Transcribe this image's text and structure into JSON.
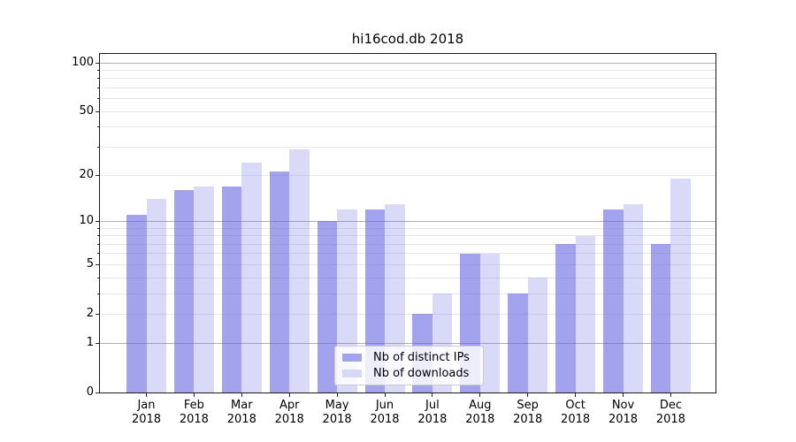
{
  "figure": {
    "title": "hi16cod.db 2018"
  },
  "chart_data": {
    "type": "bar",
    "title": "hi16cod.db 2018",
    "categories": [
      "Jan 2018",
      "Feb 2018",
      "Mar 2018",
      "Apr 2018",
      "May 2018",
      "Jun 2018",
      "Jul 2018",
      "Aug 2018",
      "Sep 2018",
      "Oct 2018",
      "Nov 2018",
      "Dec 2018"
    ],
    "months": [
      "Jan",
      "Feb",
      "Mar",
      "Apr",
      "May",
      "Jun",
      "Jul",
      "Aug",
      "Sep",
      "Oct",
      "Nov",
      "Dec"
    ],
    "year": "2018",
    "series": [
      {
        "name": "Nb of distinct IPs",
        "values": [
          11,
          16,
          17,
          21,
          10,
          12,
          2,
          6,
          3,
          7,
          12,
          7
        ],
        "color": "#6060e0",
        "alpha": 0.58,
        "legend_color": "#a2a2ed"
      },
      {
        "name": "Nb of downloads",
        "values": [
          14,
          17,
          24,
          29,
          12,
          13,
          3,
          6,
          4,
          8,
          13,
          19
        ],
        "color": "#6060e0",
        "alpha": 0.24,
        "legend_color": "#d8d8f8"
      }
    ],
    "xlabel": "",
    "ylabel": "",
    "y_axis": {
      "scale": "log(value+1)",
      "range": [
        0,
        115
      ],
      "tick_values": [
        0,
        1,
        2,
        5,
        10,
        20,
        50,
        100
      ],
      "tick_labels": [
        "0",
        "1",
        "2",
        "5",
        "10",
        "20",
        "50",
        "100"
      ],
      "major_gridlines": [
        1,
        10,
        100
      ],
      "minor_gridlines": [
        2,
        3,
        4,
        5,
        6,
        7,
        8,
        9,
        20,
        30,
        40,
        50,
        60,
        70,
        80,
        90
      ]
    },
    "grid": true,
    "legend_position": "lower center-right inside plot",
    "colors": {
      "grid_major": "#b0b0b0",
      "grid_minor": "#e6e6e6",
      "spine": "#1a1a1a",
      "tick": "#262626",
      "text": "#000000",
      "background": "#ffffff"
    }
  }
}
